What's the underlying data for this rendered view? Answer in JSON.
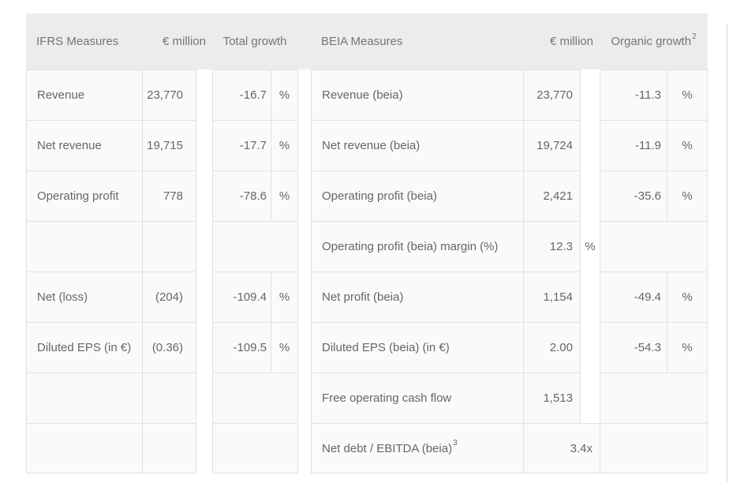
{
  "table": {
    "colors": {
      "header_bg": "#eeeceb",
      "row_bg": "#fbfafa",
      "border": "#e3e1e0",
      "header_text": "#767474",
      "cell_text": "#676565"
    },
    "left": {
      "header": {
        "title": "IFRS Measures",
        "unit": "€ million",
        "growth": "Total growth"
      },
      "rows": [
        {
          "label": "Revenue",
          "value": "23,770",
          "growth": "-16.7",
          "pct": "%"
        },
        {
          "label": "Net revenue",
          "value": "19,715",
          "growth": "-17.7",
          "pct": "%"
        },
        {
          "label": "Operating profit",
          "value": "778",
          "growth": "-78.6",
          "pct": "%"
        },
        {},
        {
          "label": "Net (loss)",
          "value": "(204)",
          "growth": "-109.4",
          "pct": "%"
        },
        {
          "label": "Diluted EPS (in €)",
          "value": "(0.36)",
          "growth": "-109.5",
          "pct": "%"
        },
        {},
        {}
      ]
    },
    "right": {
      "header": {
        "title": "BEIA Measures",
        "unit": "€ million",
        "growth": "Organic growth",
        "growth_sup": "2"
      },
      "rows": [
        {
          "label": "Revenue (beia)",
          "value": "23,770",
          "growth": "-11.3",
          "pct": "%"
        },
        {
          "label": "Net revenue (beia)",
          "value": "19,724",
          "growth": "-11.9",
          "pct": "%"
        },
        {
          "label": "Operating profit (beia)",
          "value": "2,421",
          "growth": "-35.6",
          "pct": "%"
        },
        {
          "label": "Operating profit (beia) margin (%)",
          "value": "12.3",
          "unit_pct": "%"
        },
        {
          "label": "Net profit (beia)",
          "value": "1,154",
          "growth": "-49.4",
          "pct": "%"
        },
        {
          "label": "Diluted EPS (beia) (in €)",
          "value": "2.00",
          "growth": "-54.3",
          "pct": "%"
        },
        {
          "label": "Free operating cash flow",
          "value": "1,513"
        },
        {
          "label": "Net debt / EBITDA (beia)",
          "label_sup": "3",
          "value": "3.4x"
        }
      ]
    }
  }
}
